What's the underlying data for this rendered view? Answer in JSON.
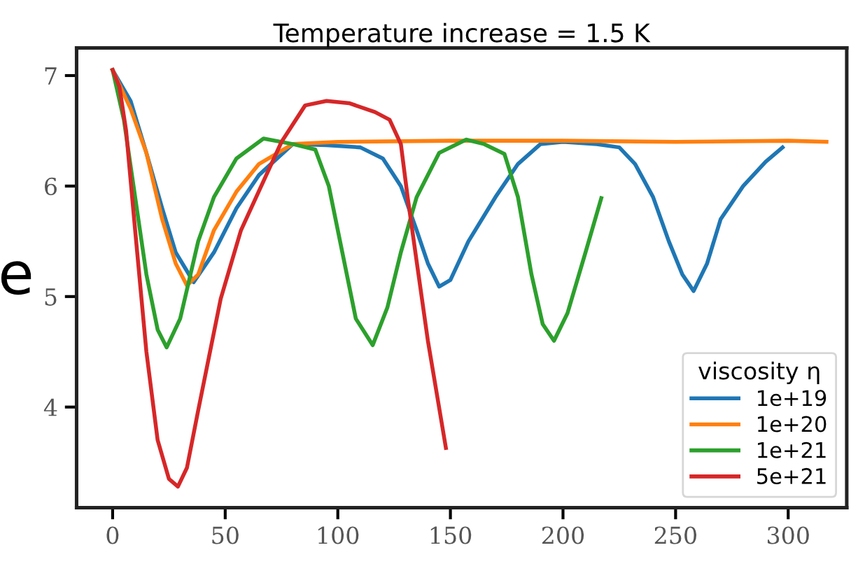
{
  "chart_data": {
    "type": "line",
    "title": "Temperature increase = 1.5 K",
    "ylabel": "e",
    "legend_title": "viscosity η",
    "xlim": [
      -16,
      326
    ],
    "ylim": [
      3.09,
      7.25
    ],
    "xticks": [
      0,
      50,
      100,
      150,
      200,
      250,
      300
    ],
    "yticks": [
      4,
      5,
      6,
      7
    ],
    "grid": false,
    "legend": "bottom right",
    "series": [
      {
        "name": "1e+19",
        "color": "#1f77b4",
        "x": [
          0,
          8,
          15,
          22,
          28,
          36,
          45,
          55,
          65,
          80,
          95,
          110,
          120,
          128,
          135,
          140,
          145,
          150,
          158,
          170,
          180,
          190,
          200,
          215,
          225,
          232,
          240,
          247,
          253,
          258,
          264,
          270,
          280,
          290,
          297.5
        ],
        "values": [
          7.05,
          6.77,
          6.3,
          5.8,
          5.4,
          5.13,
          5.4,
          5.8,
          6.1,
          6.38,
          6.37,
          6.35,
          6.25,
          6.0,
          5.6,
          5.3,
          5.09,
          5.15,
          5.5,
          5.9,
          6.2,
          6.38,
          6.4,
          6.38,
          6.35,
          6.2,
          5.9,
          5.5,
          5.2,
          5.05,
          5.3,
          5.7,
          6.0,
          6.22,
          6.35
        ]
      },
      {
        "name": "1e+20",
        "color": "#ff7f0e",
        "x": [
          0,
          8,
          15,
          22,
          28,
          33,
          38,
          45,
          55,
          65,
          80,
          100,
          150,
          200,
          250,
          300,
          317
        ],
        "values": [
          7.05,
          6.7,
          6.3,
          5.7,
          5.3,
          5.1,
          5.2,
          5.6,
          5.95,
          6.2,
          6.38,
          6.4,
          6.41,
          6.41,
          6.4,
          6.41,
          6.4
        ]
      },
      {
        "name": "1e+21",
        "color": "#2ca02c",
        "x": [
          0,
          5,
          10,
          15,
          20,
          24,
          30,
          38,
          45,
          55,
          67,
          80,
          90,
          96,
          102,
          108,
          115.5,
          122,
          128,
          135,
          145,
          157,
          165,
          174,
          180,
          186,
          191,
          196,
          202,
          210,
          217
        ],
        "values": [
          7.05,
          6.6,
          5.9,
          5.2,
          4.7,
          4.54,
          4.8,
          5.5,
          5.9,
          6.25,
          6.43,
          6.38,
          6.33,
          6.0,
          5.4,
          4.8,
          4.56,
          4.9,
          5.4,
          5.9,
          6.3,
          6.42,
          6.38,
          6.29,
          5.9,
          5.2,
          4.75,
          4.6,
          4.85,
          5.4,
          5.89
        ]
      },
      {
        "name": "5e+21",
        "color": "#d62728",
        "x": [
          0,
          3,
          6,
          10,
          15,
          20,
          25,
          29,
          33,
          38,
          48,
          57,
          66,
          75,
          85.5,
          95,
          105,
          116.5,
          123,
          128,
          131,
          135,
          140,
          148
        ],
        "values": [
          7.05,
          6.9,
          6.5,
          5.6,
          4.5,
          3.7,
          3.35,
          3.28,
          3.45,
          3.97,
          4.98,
          5.6,
          6.0,
          6.4,
          6.73,
          6.77,
          6.75,
          6.67,
          6.6,
          6.38,
          5.9,
          5.32,
          4.6,
          3.63
        ]
      }
    ]
  }
}
